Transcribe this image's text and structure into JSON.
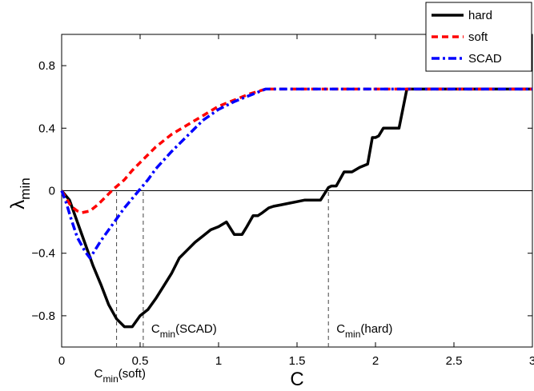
{
  "chart_data": {
    "type": "line",
    "title": "",
    "xlabel": "C",
    "ylabel": {
      "base": "λ",
      "sub": "min"
    },
    "xlim": [
      0,
      3
    ],
    "ylim": [
      -1,
      1
    ],
    "xticks": [
      {
        "value": 0,
        "label": "0"
      },
      {
        "value": 0.5,
        "label": "0.5"
      },
      {
        "value": 1,
        "label": "1"
      },
      {
        "value": 1.5,
        "label": "1.5"
      },
      {
        "value": 2,
        "label": "2"
      },
      {
        "value": 2.5,
        "label": "2.5"
      },
      {
        "value": 3,
        "label": "3"
      }
    ],
    "yticks": [
      {
        "value": 0.8,
        "label": "0.8"
      },
      {
        "value": 0.4,
        "label": "0.4"
      },
      {
        "value": 0,
        "label": "0"
      },
      {
        "value": -0.4,
        "label": "−0.4"
      },
      {
        "value": -0.8,
        "label": "−0.8"
      }
    ],
    "grid": false,
    "zero_line": true,
    "legend": {
      "position": "top-right"
    },
    "series": [
      {
        "name": "hard",
        "color": "#000000",
        "style": "solid",
        "x": [
          0,
          0.05,
          0.1,
          0.15,
          0.2,
          0.25,
          0.3,
          0.35,
          0.4,
          0.45,
          0.5,
          0.55,
          0.6,
          0.65,
          0.7,
          0.75,
          0.8,
          0.85,
          0.9,
          0.95,
          1.0,
          1.05,
          1.1,
          1.15,
          1.18,
          1.22,
          1.25,
          1.28,
          1.32,
          1.35,
          1.4,
          1.45,
          1.5,
          1.55,
          1.6,
          1.65,
          1.7,
          1.72,
          1.75,
          1.8,
          1.85,
          1.9,
          1.95,
          1.98,
          2.0,
          2.02,
          2.05,
          2.08,
          2.1,
          2.15,
          2.2,
          2.25,
          2.3,
          3.0
        ],
        "y": [
          0,
          -0.06,
          -0.2,
          -0.34,
          -0.48,
          -0.6,
          -0.73,
          -0.82,
          -0.87,
          -0.87,
          -0.8,
          -0.76,
          -0.69,
          -0.61,
          -0.53,
          -0.43,
          -0.38,
          -0.33,
          -0.29,
          -0.25,
          -0.23,
          -0.2,
          -0.28,
          -0.28,
          -0.23,
          -0.16,
          -0.16,
          -0.14,
          -0.11,
          -0.1,
          -0.09,
          -0.08,
          -0.07,
          -0.06,
          -0.06,
          -0.06,
          0.02,
          0.03,
          0.03,
          0.12,
          0.12,
          0.15,
          0.17,
          0.34,
          0.34,
          0.35,
          0.4,
          0.4,
          0.4,
          0.4,
          0.65,
          0.65,
          0.65,
          0.65
        ]
      },
      {
        "name": "soft",
        "color": "#ff0000",
        "style": "dashed",
        "x": [
          0,
          0.03,
          0.06,
          0.1,
          0.13,
          0.18,
          0.23,
          0.28,
          0.33,
          0.4,
          0.45,
          0.5,
          0.55,
          0.6,
          0.7,
          0.8,
          0.9,
          1.0,
          1.1,
          1.2,
          1.3,
          3.0
        ],
        "y": [
          0,
          -0.05,
          -0.1,
          -0.13,
          -0.14,
          -0.13,
          -0.09,
          -0.04,
          0.01,
          0.07,
          0.13,
          0.18,
          0.23,
          0.28,
          0.36,
          0.42,
          0.48,
          0.54,
          0.58,
          0.62,
          0.65,
          0.65
        ]
      },
      {
        "name": "SCAD",
        "color": "#0000ff",
        "style": "dashdot",
        "x": [
          0,
          0.03,
          0.06,
          0.1,
          0.15,
          0.18,
          0.2,
          0.25,
          0.3,
          0.35,
          0.4,
          0.45,
          0.5,
          0.55,
          0.6,
          0.7,
          0.8,
          0.9,
          1.0,
          1.1,
          1.2,
          1.3,
          3.0
        ],
        "y": [
          0,
          -0.08,
          -0.18,
          -0.3,
          -0.39,
          -0.43,
          -0.4,
          -0.32,
          -0.25,
          -0.18,
          -0.11,
          -0.05,
          0.01,
          0.07,
          0.14,
          0.25,
          0.35,
          0.45,
          0.52,
          0.57,
          0.61,
          0.65,
          0.65
        ]
      }
    ],
    "vlines": [
      {
        "x": 0.35,
        "y_from": -1,
        "y_to": 0
      },
      {
        "x": 0.52,
        "y_from": -1,
        "y_to": 0
      },
      {
        "x": 1.7,
        "y_from": -1,
        "y_to": 0
      }
    ],
    "annotations": [
      {
        "id": "cmin-soft",
        "base": "C",
        "sub": "min",
        "rest": "(soft)",
        "x": 0.35
      },
      {
        "id": "cmin-scad",
        "base": "C",
        "sub": "min",
        "rest": "(SCAD)",
        "x": 0.52
      },
      {
        "id": "cmin-hard",
        "base": "C",
        "sub": "min",
        "rest": "(hard)",
        "x": 1.7
      }
    ]
  }
}
